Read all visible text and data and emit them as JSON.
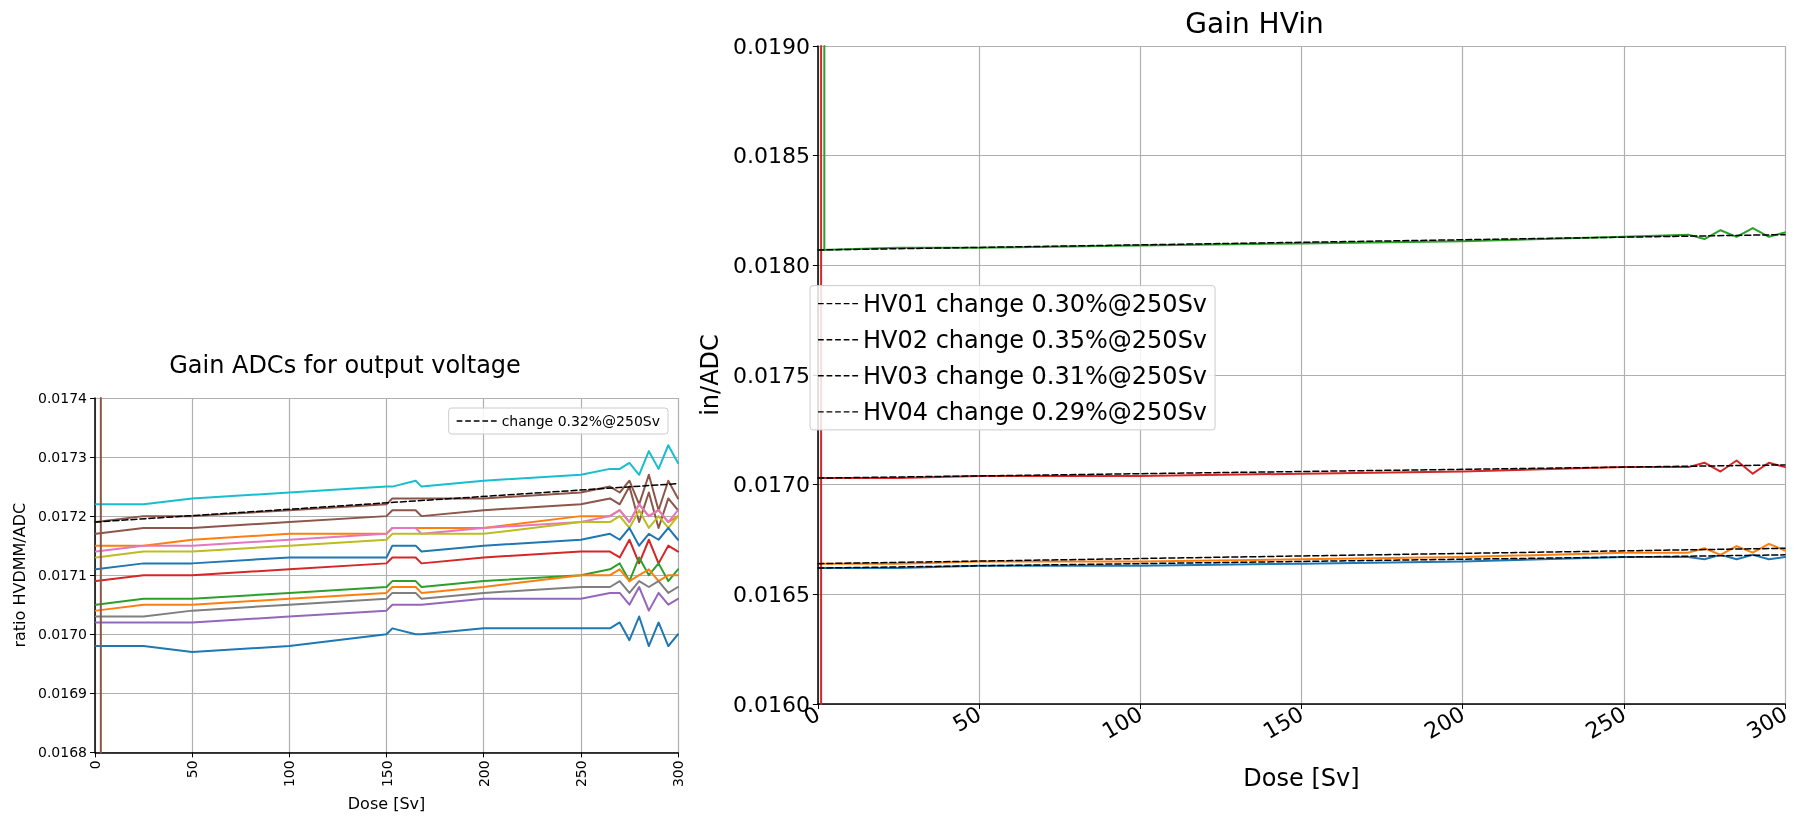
{
  "chart_data": [
    {
      "type": "line",
      "title": "Gain ADCs for output voltage",
      "xlabel": "Dose [Sv]",
      "ylabel": "ratio HVDMM/ADC",
      "xlim": [
        0,
        300
      ],
      "xticks": [
        0,
        50,
        100,
        150,
        200,
        250,
        300
      ],
      "ylim": [
        0.0168,
        0.0174
      ],
      "yticks": [
        {
          "value": 0.0168,
          "label": "0.0168"
        },
        {
          "value": 0.0169,
          "label": "0.0169"
        },
        {
          "value": 0.017,
          "label": "0.0170"
        },
        {
          "value": 0.0171,
          "label": "0.0171"
        },
        {
          "value": 0.0172,
          "label": "0.0172"
        },
        {
          "value": 0.0173,
          "label": "0.0173"
        },
        {
          "value": 0.0174,
          "label": "0.0174"
        }
      ],
      "grid": true,
      "legend": "top right",
      "marker": "none",
      "line_style": "solid",
      "x": [
        0.5,
        25,
        50,
        100,
        150,
        153,
        165,
        168,
        200,
        250,
        265,
        270,
        275,
        280,
        285,
        290,
        295,
        300
      ],
      "series": [
        {
          "color": "#17becf",
          "values": [
            0.01722,
            0.01722,
            0.01723,
            0.01724,
            0.01725,
            0.01725,
            0.01726,
            0.01725,
            0.01726,
            0.01727,
            0.01728,
            0.01728,
            0.01729,
            0.01727,
            0.01731,
            0.01728,
            0.01732,
            0.01729
          ]
        },
        {
          "color": "#8c564b",
          "values": [
            0.01719,
            0.0172,
            0.0172,
            0.01721,
            0.01722,
            0.01723,
            0.01723,
            0.01723,
            0.01723,
            0.01724,
            0.01725,
            0.01724,
            0.01726,
            0.01722,
            0.01727,
            0.01721,
            0.01726,
            0.01723
          ]
        },
        {
          "color": "#8c564b",
          "values": [
            0.01717,
            0.01718,
            0.01718,
            0.01719,
            0.0172,
            0.01721,
            0.01721,
            0.0172,
            0.01721,
            0.01722,
            0.01723,
            0.01722,
            0.01725,
            0.01719,
            0.01724,
            0.01718,
            0.01723,
            0.01721
          ]
        },
        {
          "color": "#ff7f0e",
          "values": [
            0.01715,
            0.01715,
            0.01716,
            0.01717,
            0.01717,
            0.01718,
            0.01718,
            0.01718,
            0.01718,
            0.0172,
            0.0172,
            0.01721,
            0.01719,
            0.01722,
            0.0172,
            0.01721,
            0.01719,
            0.0172
          ]
        },
        {
          "color": "#e377c2",
          "values": [
            0.01714,
            0.01715,
            0.01715,
            0.01716,
            0.01717,
            0.01718,
            0.01718,
            0.01717,
            0.01718,
            0.01719,
            0.0172,
            0.01721,
            0.01719,
            0.01722,
            0.0172,
            0.01721,
            0.01719,
            0.01721
          ]
        },
        {
          "color": "#bcbd22",
          "values": [
            0.01713,
            0.01714,
            0.01714,
            0.01715,
            0.01716,
            0.01717,
            0.01717,
            0.01717,
            0.01717,
            0.01719,
            0.01719,
            0.0172,
            0.01718,
            0.01721,
            0.01718,
            0.0172,
            0.01718,
            0.0172
          ]
        },
        {
          "color": "#1f77b4",
          "values": [
            0.01711,
            0.01712,
            0.01712,
            0.01713,
            0.01713,
            0.01715,
            0.01715,
            0.01714,
            0.01715,
            0.01716,
            0.01717,
            0.01716,
            0.01718,
            0.01715,
            0.01717,
            0.01716,
            0.01718,
            0.01716
          ]
        },
        {
          "color": "#d62728",
          "values": [
            0.01709,
            0.0171,
            0.0171,
            0.01711,
            0.01712,
            0.01713,
            0.01713,
            0.01712,
            0.01713,
            0.01714,
            0.01714,
            0.01713,
            0.01716,
            0.01712,
            0.01716,
            0.01712,
            0.01715,
            0.01714
          ]
        },
        {
          "color": "#2ca02c",
          "values": [
            0.01705,
            0.01706,
            0.01706,
            0.01707,
            0.01708,
            0.01709,
            0.01709,
            0.01708,
            0.01709,
            0.0171,
            0.01711,
            0.01712,
            0.01709,
            0.01713,
            0.0171,
            0.01712,
            0.01709,
            0.01711
          ]
        },
        {
          "color": "#ff7f0e",
          "values": [
            0.01704,
            0.01705,
            0.01705,
            0.01706,
            0.01707,
            0.01708,
            0.01708,
            0.01707,
            0.01708,
            0.0171,
            0.0171,
            0.01711,
            0.01709,
            0.0171,
            0.01711,
            0.01709,
            0.0171,
            0.0171
          ]
        },
        {
          "color": "#7f7f7f",
          "values": [
            0.01703,
            0.01703,
            0.01704,
            0.01705,
            0.01706,
            0.01707,
            0.01707,
            0.01706,
            0.01707,
            0.01708,
            0.01708,
            0.01709,
            0.01707,
            0.01709,
            0.01708,
            0.01709,
            0.01707,
            0.01708
          ]
        },
        {
          "color": "#9467bd",
          "values": [
            0.01702,
            0.01702,
            0.01702,
            0.01703,
            0.01704,
            0.01705,
            0.01705,
            0.01705,
            0.01706,
            0.01706,
            0.01707,
            0.01707,
            0.01705,
            0.01708,
            0.01704,
            0.01707,
            0.01705,
            0.01706
          ]
        },
        {
          "color": "#1f77b4",
          "values": [
            0.01698,
            0.01698,
            0.01697,
            0.01698,
            0.017,
            0.01701,
            0.017,
            0.017,
            0.01701,
            0.01701,
            0.01701,
            0.01702,
            0.01699,
            0.01703,
            0.01698,
            0.01702,
            0.01698,
            0.017
          ]
        },
        {
          "color": "#8c564b",
          "x": [
            3,
            3
          ],
          "values": [
            0.0168,
            0.0174
          ]
        },
        {
          "name": "change 0.32%@250Sv",
          "color": "#000000",
          "line_style": "dashed",
          "x": [
            0,
            300
          ],
          "values": [
            0.01719,
            0.017255
          ]
        }
      ]
    },
    {
      "type": "line",
      "title": "Gain HVin",
      "xlabel": "Dose [Sv]",
      "ylabel": "in/ADC",
      "xlim": [
        0,
        300
      ],
      "xticks": [
        0,
        50,
        100,
        150,
        200,
        250,
        300
      ],
      "ylim": [
        0.016,
        0.019
      ],
      "yticks": [
        {
          "value": 0.016,
          "label": "0.0160"
        },
        {
          "value": 0.0165,
          "label": "0.0165"
        },
        {
          "value": 0.017,
          "label": "0.0170"
        },
        {
          "value": 0.0175,
          "label": "0.0175"
        },
        {
          "value": 0.018,
          "label": "0.0180"
        },
        {
          "value": 0.0185,
          "label": "0.0185"
        },
        {
          "value": 0.019,
          "label": "0.0190"
        }
      ],
      "grid": true,
      "legend": "left",
      "marker": "none",
      "line_style": "solid",
      "x": [
        0.5,
        25,
        50,
        100,
        150,
        200,
        250,
        270,
        275,
        280,
        285,
        290,
        295,
        300
      ],
      "series": [
        {
          "color": "#1f77b4",
          "values": [
            0.01662,
            0.01662,
            0.01663,
            0.01663,
            0.01664,
            0.01665,
            0.01667,
            0.01667,
            0.01666,
            0.01668,
            0.01666,
            0.01668,
            0.01666,
            0.01667
          ]
        },
        {
          "color": "#ff7f0e",
          "values": [
            0.01664,
            0.01664,
            0.01665,
            0.01665,
            0.01666,
            0.01667,
            0.01669,
            0.01669,
            0.01671,
            0.01668,
            0.01672,
            0.01669,
            0.01673,
            0.0167
          ]
        },
        {
          "color": "#2ca02c",
          "values": [
            0.01807,
            0.01808,
            0.01808,
            0.01809,
            0.0181,
            0.01811,
            0.01813,
            0.01814,
            0.01812,
            0.01816,
            0.01813,
            0.01817,
            0.01813,
            0.01815
          ]
        },
        {
          "color": "#d62728",
          "values": [
            0.01703,
            0.01703,
            0.01704,
            0.01704,
            0.01705,
            0.01706,
            0.01708,
            0.01708,
            0.0171,
            0.01706,
            0.01711,
            0.01705,
            0.0171,
            0.01708
          ]
        },
        {
          "color": "#2ca02c",
          "x": [
            2,
            2
          ],
          "values": [
            0.01807,
            0.019
          ]
        },
        {
          "color": "#d62728",
          "x": [
            1,
            1
          ],
          "values": [
            0.016,
            0.019
          ]
        },
        {
          "name": "HV01 change 0.30%@250Sv",
          "color": "#000000",
          "line_style": "dashed",
          "x": [
            0,
            300
          ],
          "values": [
            0.01662,
            0.01668
          ]
        },
        {
          "name": "HV02 change 0.35%@250Sv",
          "color": "#000000",
          "line_style": "dashed",
          "x": [
            0,
            300
          ],
          "values": [
            0.01664,
            0.01671
          ]
        },
        {
          "name": "HV03 change 0.31%@250Sv",
          "color": "#000000",
          "line_style": "dashed",
          "x": [
            0,
            300
          ],
          "values": [
            0.01807,
            0.01814
          ]
        },
        {
          "name": "HV04 change 0.29%@250Sv",
          "color": "#000000",
          "line_style": "dashed",
          "x": [
            0,
            300
          ],
          "values": [
            0.01703,
            0.01709
          ]
        }
      ]
    }
  ]
}
